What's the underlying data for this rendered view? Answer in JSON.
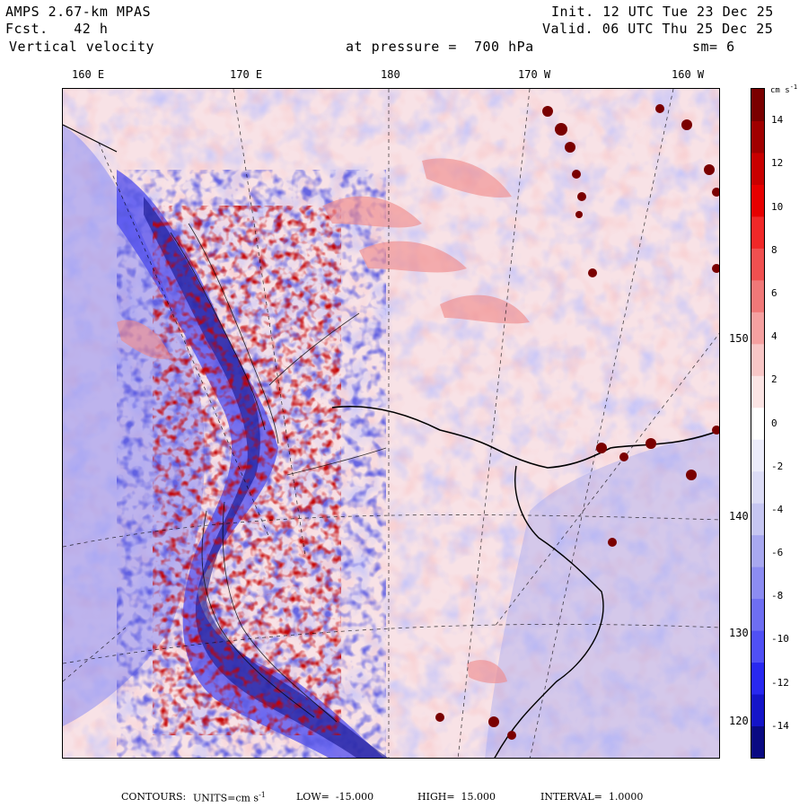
{
  "header": {
    "model": "AMPS 2.67-km MPAS",
    "fcst_label": "Fcst.",
    "fcst_value": "42 h",
    "field": "Vertical velocity",
    "init": "Init. 12 UTC Tue 23 Dec 25",
    "valid": "Valid. 06 UTC Thu 25 Dec 25",
    "level": "at pressure =  700 hPa",
    "smoothing": "sm= 6"
  },
  "lon_labels": [
    "160 E",
    "170 E",
    "180",
    "170 W",
    "160 W"
  ],
  "lat_labels": [
    "150 W",
    "140 W",
    "130 W",
    "120 W"
  ],
  "colorbar": {
    "units_label": "cm s",
    "units_exp": "-1",
    "ticks": [
      "14",
      "12",
      "10",
      "8",
      "6",
      "4",
      "2",
      "0",
      "-2",
      "-4",
      "-6",
      "-8",
      "-10",
      "-12",
      "-14"
    ],
    "colors": [
      "#0a0a82",
      "#1414c8",
      "#2828f0",
      "#5050f5",
      "#6e6ef2",
      "#8c8cf2",
      "#a8a8f0",
      "#c6c6f2",
      "#dcdcf6",
      "#ececfa",
      "#ffffff",
      "#fbe4e4",
      "#f8c6c6",
      "#f5a0a0",
      "#f07878",
      "#f05050",
      "#f02828",
      "#e60000",
      "#c80000",
      "#a00000",
      "#7a0000"
    ]
  },
  "footer": {
    "contours_label": "CONTOURS:",
    "units_label": "UNITS=cm s",
    "units_exp": "-1",
    "low_label": "LOW=",
    "low_value": "-15.000",
    "high_label": "HIGH=",
    "high_value": "15.000",
    "interval_label": "INTERVAL=",
    "interval_value": "1.0000"
  }
}
